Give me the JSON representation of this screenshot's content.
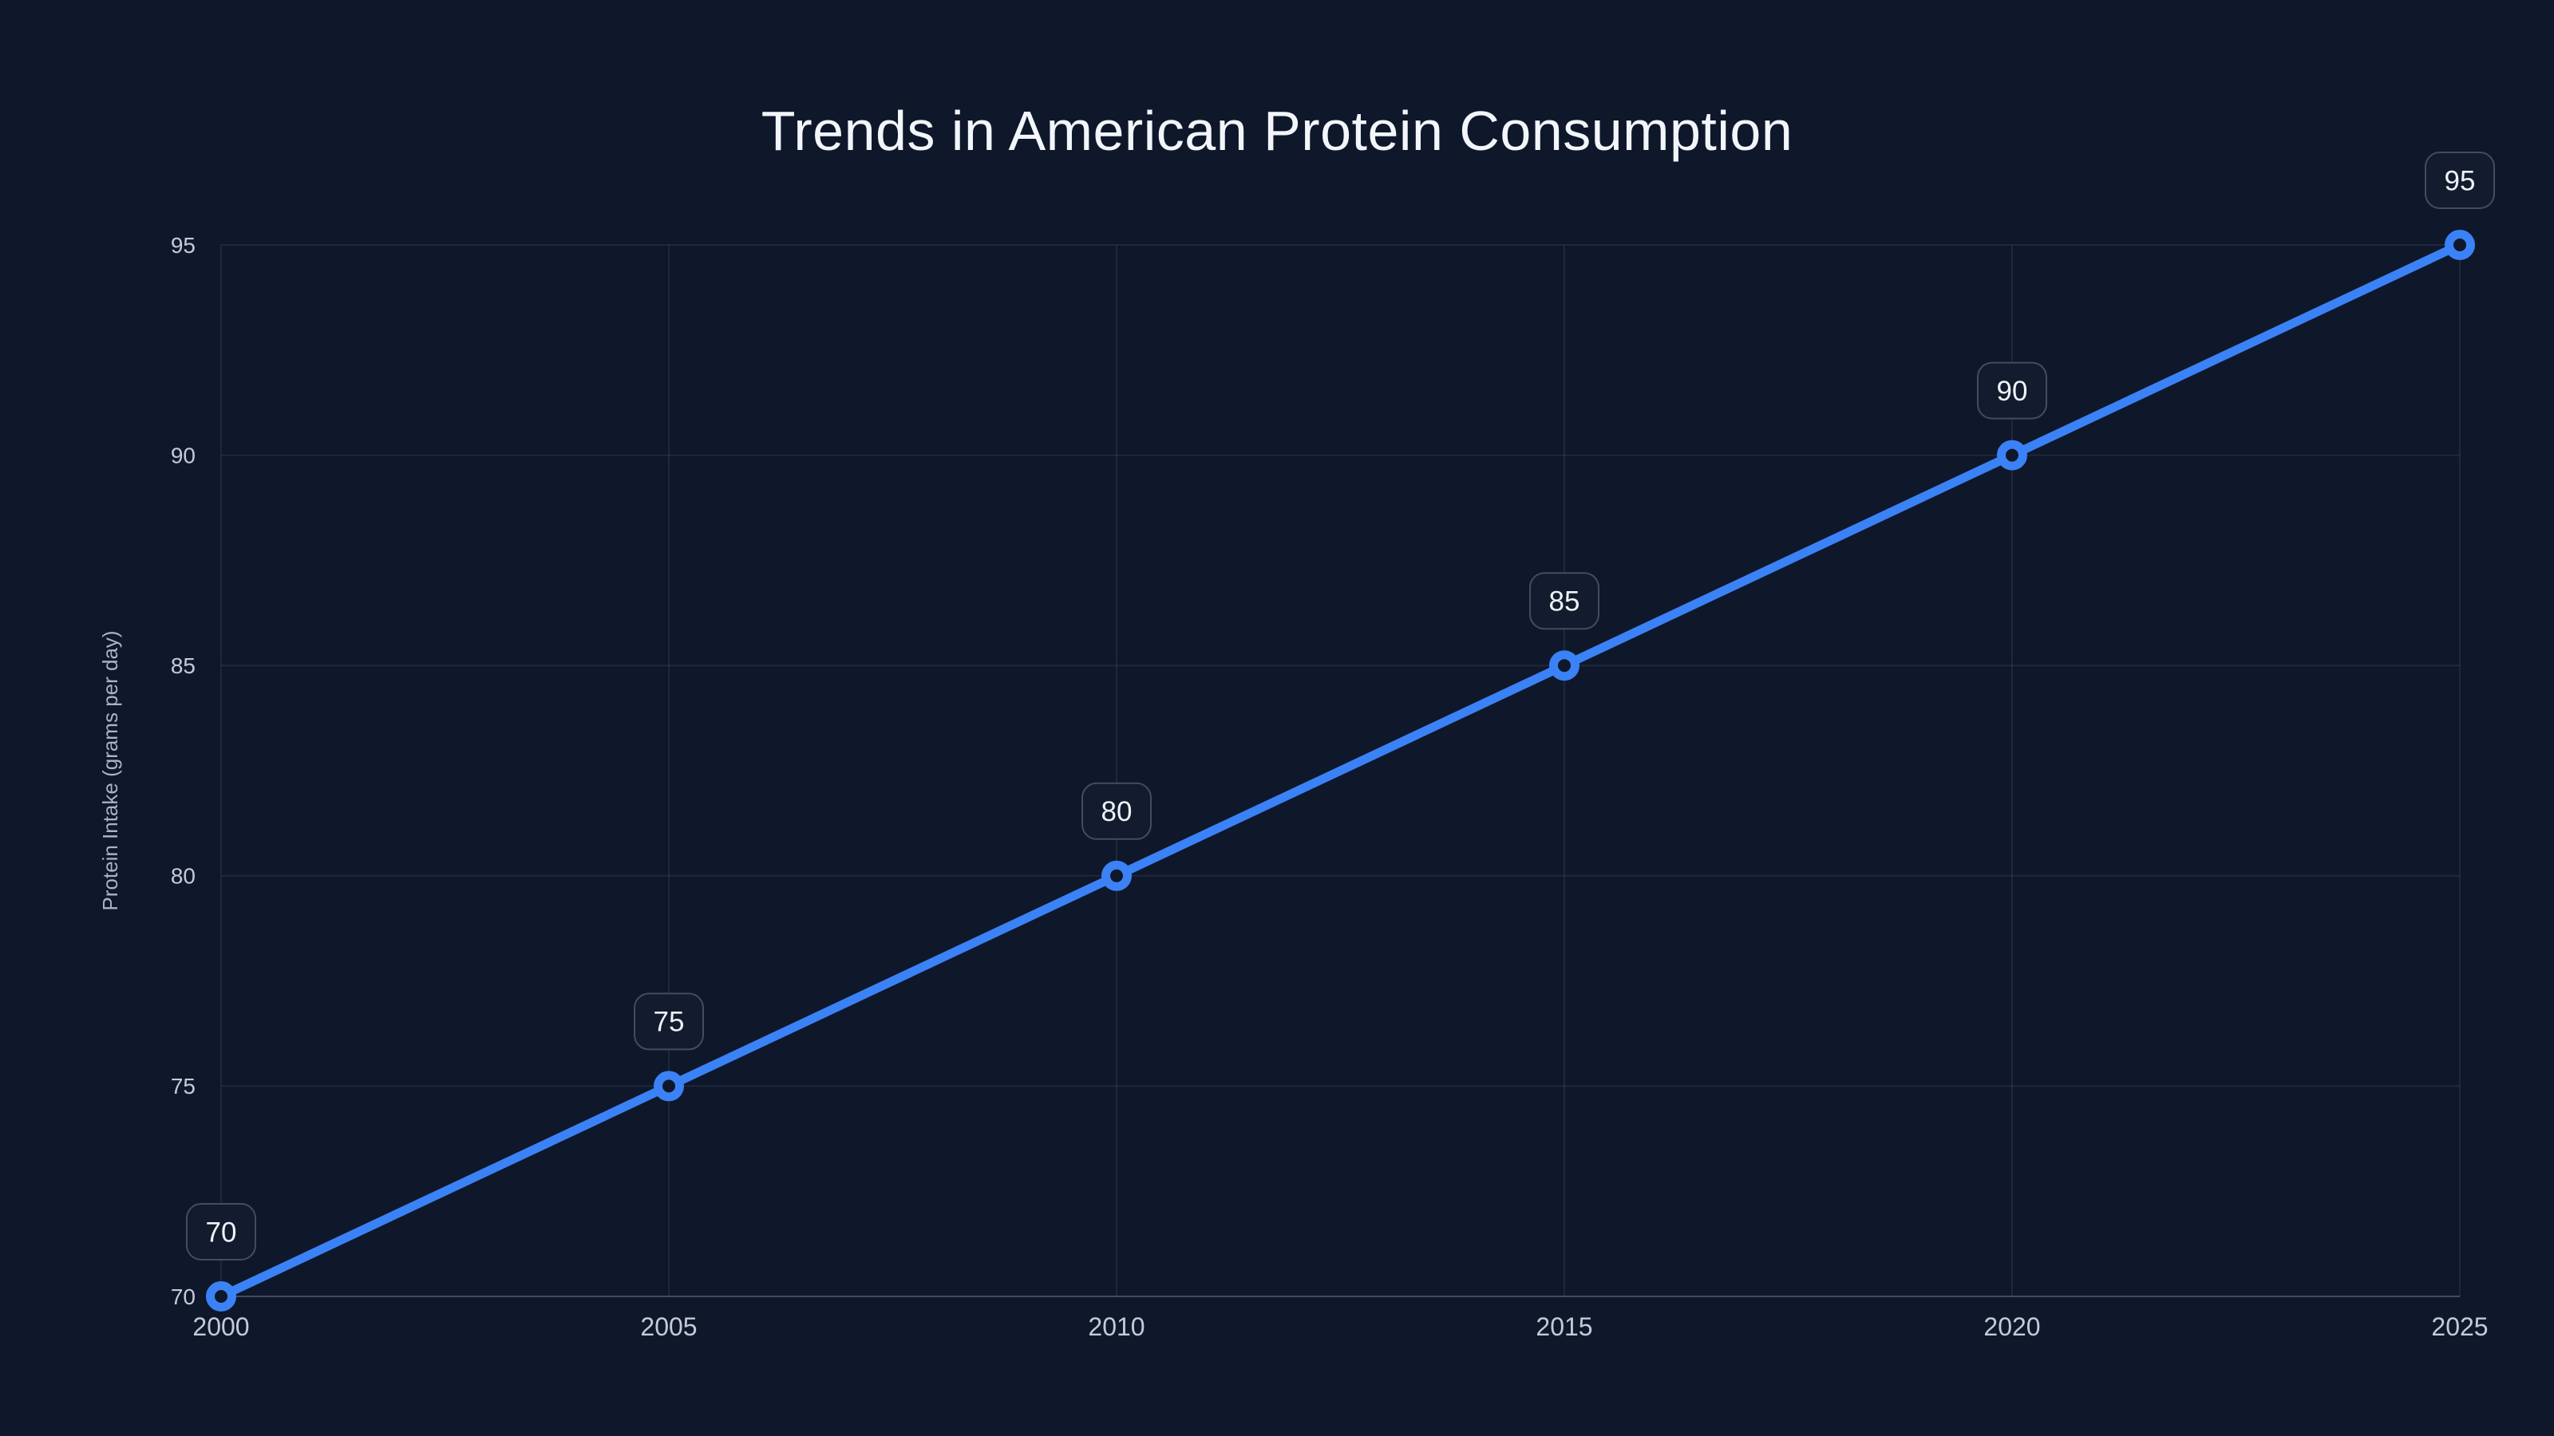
{
  "chart_data": {
    "type": "line",
    "title": "Trends in American Protein Consumption",
    "xlabel": "",
    "ylabel": "Protein Intake (grams per day)",
    "x": [
      2000,
      2005,
      2010,
      2015,
      2020,
      2025
    ],
    "values": [
      70,
      75,
      80,
      85,
      90,
      95
    ],
    "point_labels": [
      "70",
      "75",
      "80",
      "85",
      "90",
      "95"
    ],
    "x_tick_labels": [
      "2000",
      "2005",
      "2010",
      "2015",
      "2020",
      "2025"
    ],
    "y_tick_labels": [
      "70",
      "75",
      "80",
      "85",
      "90",
      "95"
    ],
    "y_tick_values": [
      70,
      75,
      80,
      85,
      90,
      95
    ],
    "xlim": [
      2000,
      2025
    ],
    "ylim": [
      70,
      95
    ],
    "grid": true,
    "legend_visible": false,
    "colors": {
      "background": "#0f172a",
      "line": "#3b82f6",
      "marker_ring": "#3b82f6",
      "marker_hole": "#0f172a",
      "grid_line": "rgba(148,163,184,0.12)",
      "axis_line": "rgba(148,163,184,0.38)",
      "tick_label": "#c3cbd9",
      "axis_title": "#a9b4c6",
      "title_text": "#f2f6fb",
      "badge_background": "#131b2e",
      "badge_border": "#414d61",
      "badge_text": "#eff3f8"
    }
  }
}
